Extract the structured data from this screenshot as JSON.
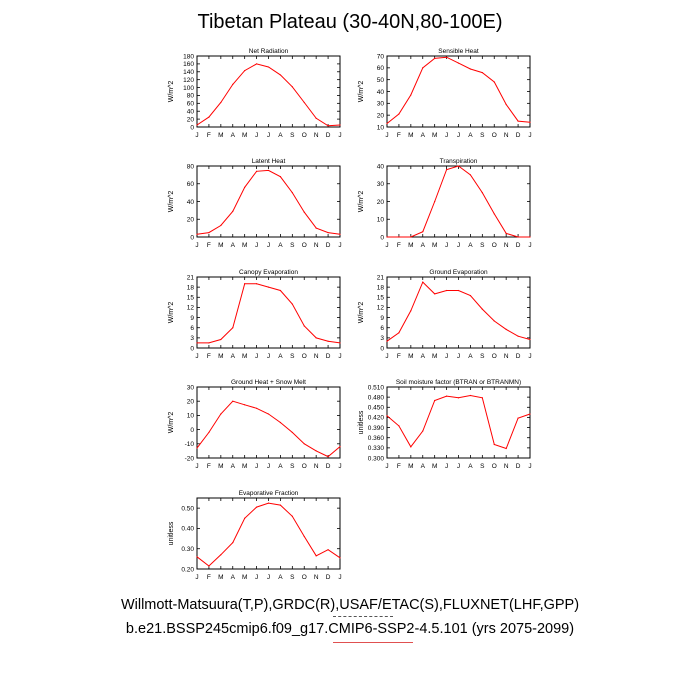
{
  "title": "Tibetan Plateau (30-40N,80-100E)",
  "footer": {
    "line1": "Willmott-Matsuura(T,P),GRDC(R),USAF/ETAC(S),FLUXNET(LHF,GPP)",
    "line2": "b.e21.BSSP245cmip6.f09_g17.CMIP6-SSP2-4.5.101 (yrs 2075-2099)"
  },
  "colors": {
    "line": "#ff0000",
    "axis": "#000000"
  },
  "chart_data": [
    {
      "type": "line",
      "title": "Net Radiation",
      "ylabel": "W/m^2",
      "categories": [
        "J",
        "F",
        "M",
        "A",
        "M",
        "J",
        "J",
        "A",
        "S",
        "O",
        "N",
        "D",
        "J"
      ],
      "ylim": [
        0,
        180
      ],
      "yticks": [
        "0",
        "20",
        "40",
        "60",
        "80",
        "100",
        "120",
        "140",
        "160",
        "180"
      ],
      "values": [
        5,
        25,
        62,
        108,
        143,
        160,
        152,
        132,
        102,
        62,
        22,
        3,
        5
      ]
    },
    {
      "type": "line",
      "title": "Sensible Heat",
      "ylabel": "W/m^2",
      "categories": [
        "J",
        "F",
        "M",
        "A",
        "M",
        "J",
        "J",
        "A",
        "S",
        "O",
        "N",
        "D",
        "J"
      ],
      "ylim": [
        10,
        70
      ],
      "yticks": [
        "10",
        "20",
        "30",
        "40",
        "50",
        "60",
        "70"
      ],
      "values": [
        13,
        21,
        37,
        60,
        68,
        69,
        64,
        59,
        56,
        48,
        29,
        15,
        14
      ]
    },
    {
      "type": "line",
      "title": "Latent Heat",
      "ylabel": "W/m^2",
      "categories": [
        "J",
        "F",
        "M",
        "A",
        "M",
        "J",
        "J",
        "A",
        "S",
        "O",
        "N",
        "D",
        "J"
      ],
      "ylim": [
        0,
        80
      ],
      "yticks": [
        "0",
        "20",
        "40",
        "60",
        "80"
      ],
      "values": [
        3,
        5,
        13,
        29,
        56,
        74,
        75,
        68,
        50,
        28,
        10,
        5,
        3
      ]
    },
    {
      "type": "line",
      "title": "Transpiration",
      "ylabel": "W/m^2",
      "categories": [
        "J",
        "F",
        "M",
        "A",
        "M",
        "J",
        "J",
        "A",
        "S",
        "O",
        "N",
        "D",
        "J"
      ],
      "ylim": [
        0,
        40
      ],
      "yticks": [
        "0",
        "10",
        "20",
        "30",
        "40"
      ],
      "values": [
        0,
        0,
        0,
        3,
        20,
        38,
        40,
        35,
        25,
        13,
        2,
        0,
        0
      ]
    },
    {
      "type": "line",
      "title": "Canopy Evaporation",
      "ylabel": "W/m^2",
      "categories": [
        "J",
        "F",
        "M",
        "A",
        "M",
        "J",
        "J",
        "A",
        "S",
        "O",
        "N",
        "D",
        "J"
      ],
      "ylim": [
        0,
        21
      ],
      "yticks": [
        "0",
        "3",
        "6",
        "9",
        "12",
        "15",
        "18",
        "21"
      ],
      "values": [
        1.5,
        1.5,
        2.5,
        6,
        19,
        19,
        18,
        17,
        13,
        6.5,
        3,
        2,
        1.5
      ]
    },
    {
      "type": "line",
      "title": "Ground Evaporation",
      "ylabel": "W/m^2",
      "categories": [
        "J",
        "F",
        "M",
        "A",
        "M",
        "J",
        "J",
        "A",
        "S",
        "O",
        "N",
        "D",
        "J"
      ],
      "ylim": [
        0,
        21
      ],
      "yticks": [
        "0",
        "3",
        "6",
        "9",
        "12",
        "15",
        "18",
        "21"
      ],
      "values": [
        2,
        4.5,
        11,
        19.5,
        16,
        17,
        17,
        15.5,
        11.5,
        8,
        5.5,
        3.5,
        2.5
      ]
    },
    {
      "type": "line",
      "title": "Ground Heat + Snow Melt",
      "ylabel": "W/m^2",
      "categories": [
        "J",
        "F",
        "M",
        "A",
        "M",
        "J",
        "J",
        "A",
        "S",
        "O",
        "N",
        "D",
        "J"
      ],
      "ylim": [
        -20,
        30
      ],
      "yticks": [
        "-20",
        "-10",
        "0",
        "10",
        "20",
        "30"
      ],
      "values": [
        -13,
        -2,
        11,
        20,
        17.5,
        15,
        11,
        5,
        -2,
        -10,
        -15,
        -19,
        -12
      ]
    },
    {
      "type": "line",
      "title": "Soil moisture factor (BTRAN or BTRANMN)",
      "ylabel": "unitless",
      "categories": [
        "J",
        "F",
        "M",
        "A",
        "M",
        "J",
        "J",
        "A",
        "S",
        "O",
        "N",
        "D",
        "J"
      ],
      "ylim": [
        0.3,
        0.51
      ],
      "yticks": [
        "0.300",
        "0.330",
        "0.360",
        "0.390",
        "0.420",
        "0.450",
        "0.480",
        "0.510"
      ],
      "values": [
        0.425,
        0.395,
        0.333,
        0.38,
        0.47,
        0.483,
        0.478,
        0.485,
        0.478,
        0.34,
        0.328,
        0.418,
        0.43
      ]
    },
    {
      "type": "line",
      "title": "Evaporative Fraction",
      "ylabel": "unitless",
      "categories": [
        "J",
        "F",
        "M",
        "A",
        "M",
        "J",
        "J",
        "A",
        "S",
        "O",
        "N",
        "D",
        "J"
      ],
      "ylim": [
        0.2,
        0.55
      ],
      "yticks": [
        "0.20",
        "0.30",
        "0.40",
        "0.50"
      ],
      "values": [
        0.26,
        0.215,
        0.27,
        0.33,
        0.45,
        0.505,
        0.525,
        0.515,
        0.46,
        0.36,
        0.265,
        0.295,
        0.255
      ]
    }
  ]
}
